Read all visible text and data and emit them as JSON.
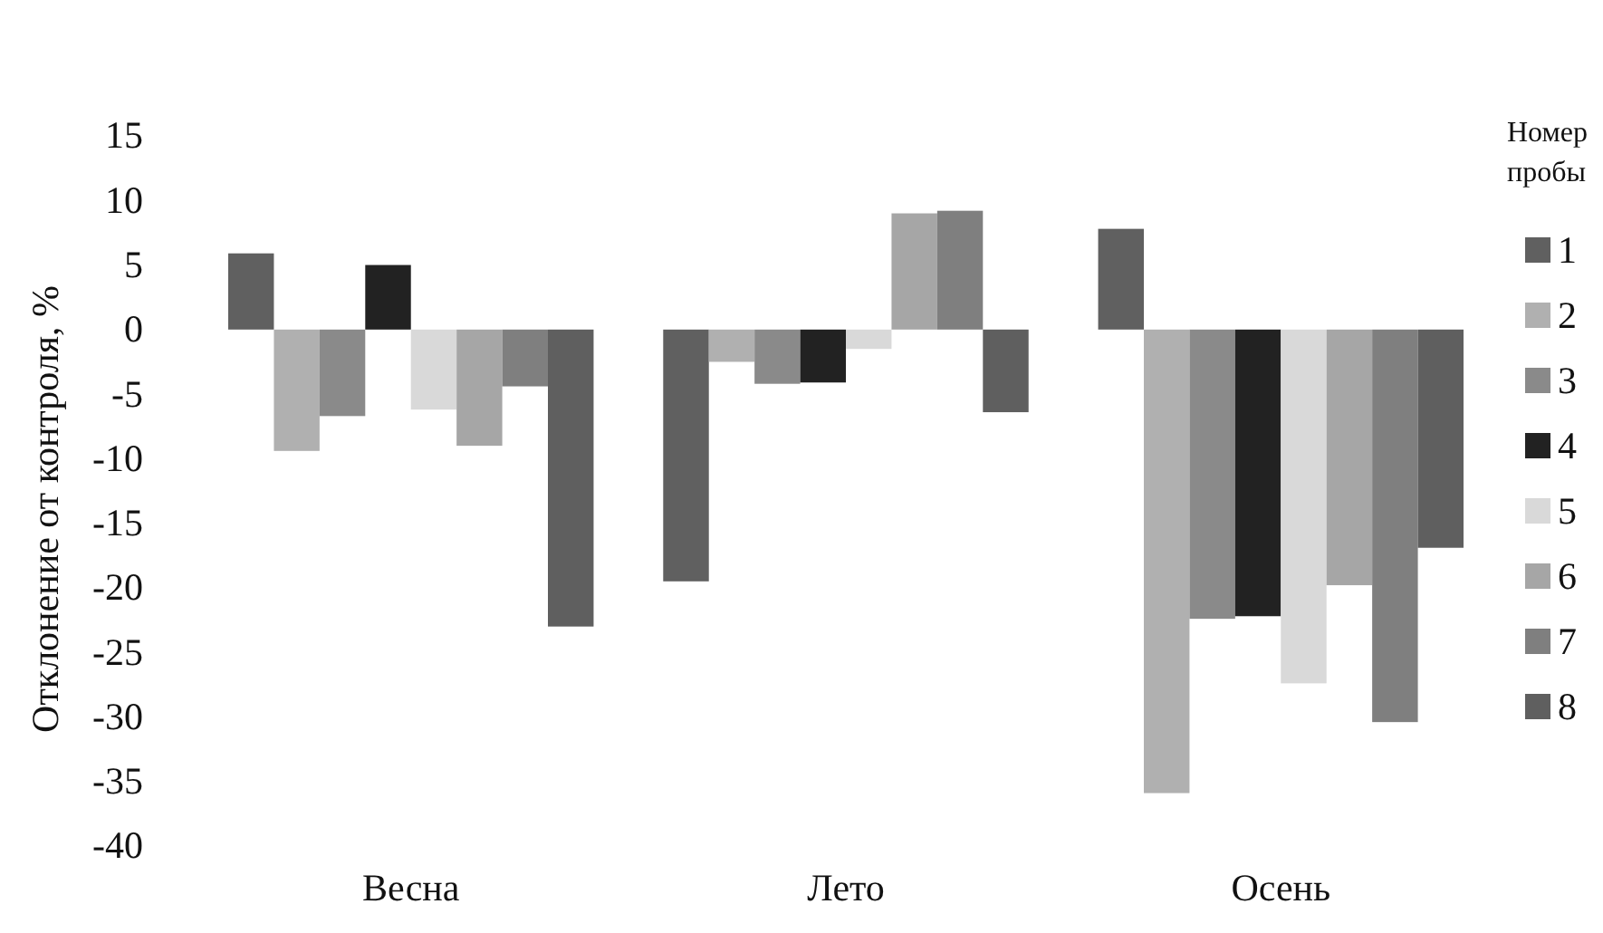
{
  "chart_data": {
    "type": "bar",
    "ylabel": "Отклонение от контроля, %",
    "legend_title": "Номер пробы",
    "categories": [
      "Весна",
      "Лето",
      "Осень"
    ],
    "ylim": [
      -40,
      15
    ],
    "yticks": [
      -40,
      -35,
      -30,
      -25,
      -20,
      -15,
      -10,
      -5,
      0,
      5,
      10,
      15
    ],
    "grid": false,
    "legend": "right",
    "series": [
      {
        "name": "1",
        "color": "#606060",
        "values": [
          5.9,
          -19.5,
          7.8
        ]
      },
      {
        "name": "2",
        "color": "#b0b0b0",
        "values": [
          -9.4,
          -2.5,
          -35.9
        ]
      },
      {
        "name": "3",
        "color": "#8a8a8a",
        "values": [
          -6.7,
          -4.2,
          -22.4
        ]
      },
      {
        "name": "4",
        "color": "#222222",
        "values": [
          5.0,
          -4.1,
          -22.2
        ]
      },
      {
        "name": "5",
        "color": "#d9d9d9",
        "values": [
          -6.2,
          -1.5,
          -27.4
        ]
      },
      {
        "name": "6",
        "color": "#a6a6a6",
        "values": [
          -9.0,
          9.0,
          -19.8
        ]
      },
      {
        "name": "7",
        "color": "#7f7f7f",
        "values": [
          -4.4,
          9.2,
          -30.4
        ]
      },
      {
        "name": "8",
        "color": "#5f5f5f",
        "values": [
          -23.0,
          -6.4,
          -16.9
        ]
      }
    ]
  }
}
